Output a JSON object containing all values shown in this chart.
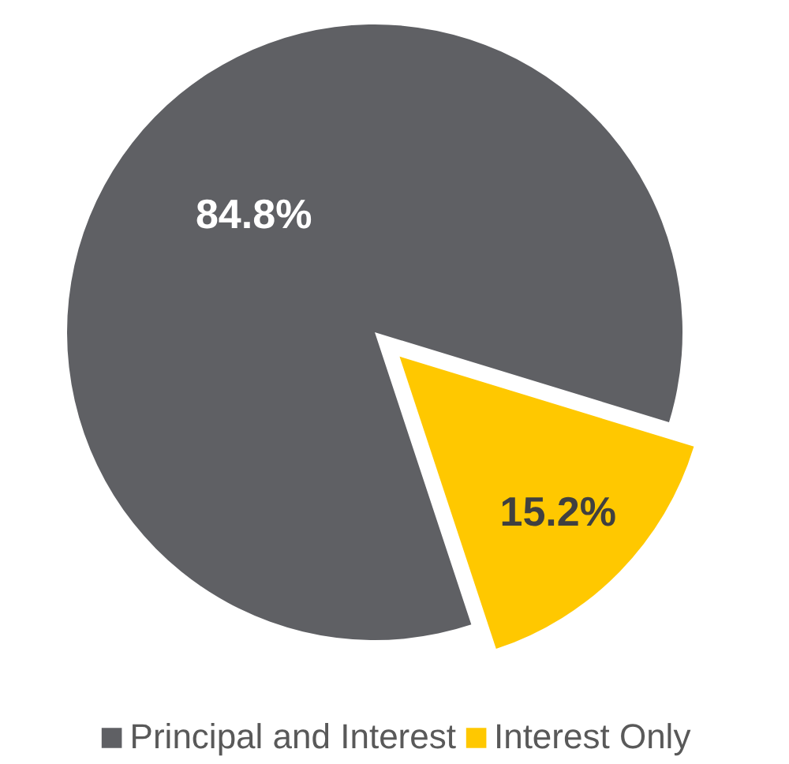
{
  "chart_data": {
    "type": "pie",
    "categories": [
      "Principal and Interest",
      "Interest Only"
    ],
    "values": [
      84.8,
      15.2
    ],
    "colors": [
      "#5f6064",
      "#ffc800"
    ],
    "value_labels": [
      "84.8%",
      "15.2%"
    ],
    "legend": "bottom"
  }
}
